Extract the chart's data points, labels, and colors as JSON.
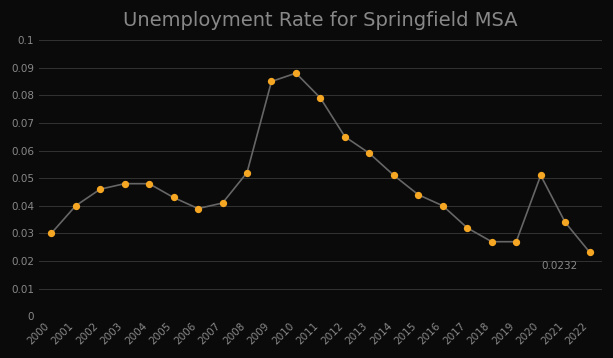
{
  "title": "Unemployment Rate for Springfield MSA",
  "years": [
    2000,
    2001,
    2002,
    2003,
    2004,
    2005,
    2006,
    2007,
    2008,
    2009,
    2010,
    2011,
    2012,
    2013,
    2014,
    2015,
    2016,
    2017,
    2018,
    2019,
    2020,
    2021,
    2022
  ],
  "values": [
    0.03,
    0.04,
    0.046,
    0.048,
    0.048,
    0.043,
    0.039,
    0.041,
    0.052,
    0.085,
    0.088,
    0.079,
    0.065,
    0.059,
    0.051,
    0.044,
    0.04,
    0.032,
    0.027,
    0.027,
    0.051,
    0.034,
    0.0232
  ],
  "line_color": "#666666",
  "marker_color": "#F5A623",
  "background_color": "#0a0a0a",
  "text_color": "#888888",
  "grid_color": "#333333",
  "ylim": [
    0,
    0.1
  ],
  "yticks": [
    0,
    0.01,
    0.02,
    0.03,
    0.04,
    0.05,
    0.06,
    0.07,
    0.08,
    0.09,
    0.1
  ],
  "last_label": "0.0232",
  "title_fontsize": 14,
  "tick_fontsize": 7.5,
  "annotation_fontsize": 7.5
}
